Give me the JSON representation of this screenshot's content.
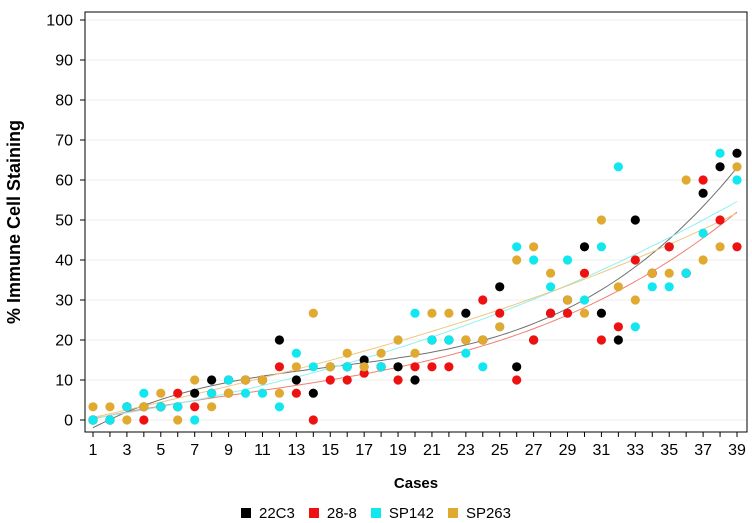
{
  "chart_data": {
    "type": "scatter",
    "xlabel": "Cases",
    "ylabel": "% Immune Cell Staining",
    "x": [
      1,
      2,
      3,
      4,
      5,
      6,
      7,
      8,
      9,
      10,
      11,
      12,
      13,
      14,
      15,
      16,
      17,
      18,
      19,
      20,
      21,
      22,
      23,
      24,
      25,
      26,
      27,
      28,
      29,
      30,
      31,
      32,
      33,
      34,
      35,
      36,
      37,
      38,
      39
    ],
    "xlim": [
      1,
      39
    ],
    "xticks": [
      1,
      3,
      5,
      7,
      9,
      11,
      13,
      15,
      17,
      19,
      21,
      23,
      25,
      27,
      29,
      31,
      33,
      35,
      37,
      39
    ],
    "ylim": [
      0,
      100
    ],
    "yticks": [
      0,
      10,
      20,
      30,
      40,
      50,
      60,
      70,
      80,
      90,
      100
    ],
    "grid": "horizontal",
    "legend_position": "bottom",
    "series": [
      {
        "name": "22C3",
        "color": "#000000",
        "trend_color": "#707070",
        "values": [
          0,
          0,
          3.3,
          3.3,
          3.3,
          3.3,
          6.7,
          10,
          10,
          10,
          10,
          20,
          10,
          6.7,
          13.3,
          13.3,
          15,
          13.3,
          13.3,
          10,
          20,
          20,
          26.7,
          20,
          33.3,
          13.3,
          20,
          26.7,
          30,
          43.3,
          26.7,
          20,
          50,
          36.7,
          43.3,
          36.7,
          56.7,
          63.3,
          66.7
        ]
      },
      {
        "name": "28-8",
        "color": "#ee1111",
        "trend_color": "#f08070",
        "values": [
          0,
          0,
          3.3,
          0,
          3.3,
          6.7,
          3.3,
          6.7,
          6.7,
          10,
          10,
          13.3,
          6.7,
          0,
          10,
          10,
          11.7,
          13.3,
          10,
          13.3,
          13.3,
          13.3,
          20,
          30,
          26.7,
          10,
          20,
          26.7,
          26.7,
          36.7,
          20,
          23.3,
          40,
          36.7,
          43.3,
          36.7,
          60,
          50,
          43.3
        ]
      },
      {
        "name": "SP142",
        "color": "#11e7ef",
        "trend_color": "#8ff0f0",
        "values": [
          0,
          0,
          3.3,
          6.7,
          3.3,
          3.3,
          0,
          6.7,
          10,
          6.7,
          6.7,
          3.3,
          16.7,
          13.3,
          13.3,
          13.3,
          13.3,
          13.3,
          20,
          26.7,
          20,
          20,
          16.7,
          13.3,
          23.3,
          43.3,
          40,
          33.3,
          40,
          30,
          43.3,
          63.3,
          23.3,
          33.3,
          33.3,
          36.7,
          46.7,
          66.7,
          60
        ]
      },
      {
        "name": "SP263",
        "color": "#e0aa30",
        "trend_color": "#eec880",
        "values": [
          3.3,
          3.3,
          0,
          3.3,
          6.7,
          0,
          10,
          3.3,
          6.7,
          10,
          10,
          6.7,
          13.3,
          26.7,
          13.3,
          16.7,
          13.3,
          16.7,
          20,
          16.7,
          26.7,
          26.7,
          20,
          20,
          23.3,
          40,
          43.3,
          36.7,
          30,
          26.7,
          50,
          33.3,
          30,
          36.7,
          36.7,
          60,
          40,
          43.3,
          63.3
        ]
      }
    ]
  }
}
